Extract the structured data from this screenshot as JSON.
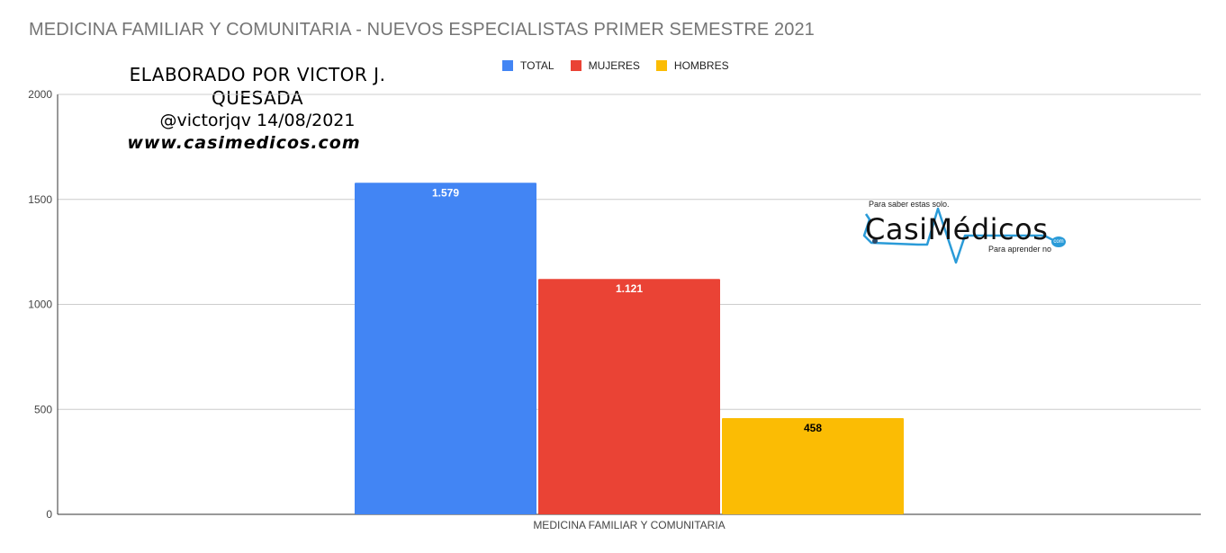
{
  "title": "MEDICINA FAMILIAR Y COMUNITARIA - NUEVOS ESPECIALISTAS PRIMER SEMESTRE 2021",
  "credits": {
    "line1": "ELABORADO POR VICTOR J. QUESADA",
    "line2": "@victorjqv 14/08/2021",
    "line3": "www.casimedicos.com"
  },
  "logo": {
    "tagline_top": "Para saber estas solo.",
    "name": "CasiMédicos",
    "tagline_bottom": "Para aprender no",
    "suffix": "com"
  },
  "colors": {
    "total": "#4285f4",
    "mujeres": "#ea4335",
    "hombres": "#fbbc04"
  },
  "chart_data": {
    "type": "bar",
    "title": "MEDICINA FAMILIAR Y COMUNITARIA - NUEVOS ESPECIALISTAS PRIMER SEMESTRE 2021",
    "categories": [
      "MEDICINA FAMILIAR Y COMUNITARIA"
    ],
    "series": [
      {
        "name": "TOTAL",
        "values": [
          1579
        ],
        "label": "1.579",
        "color": "#4285f4",
        "label_color": "#ffffff"
      },
      {
        "name": "MUJERES",
        "values": [
          1121
        ],
        "label": "1.121",
        "color": "#ea4335",
        "label_color": "#ffffff"
      },
      {
        "name": "HOMBRES",
        "values": [
          458
        ],
        "label": "458",
        "color": "#fbbc04",
        "label_color": "#000000"
      }
    ],
    "ylim": [
      0,
      2000
    ],
    "yticks": [
      "0",
      "500",
      "1000",
      "1500",
      "2000"
    ],
    "grid": true,
    "legend": "top-center"
  }
}
